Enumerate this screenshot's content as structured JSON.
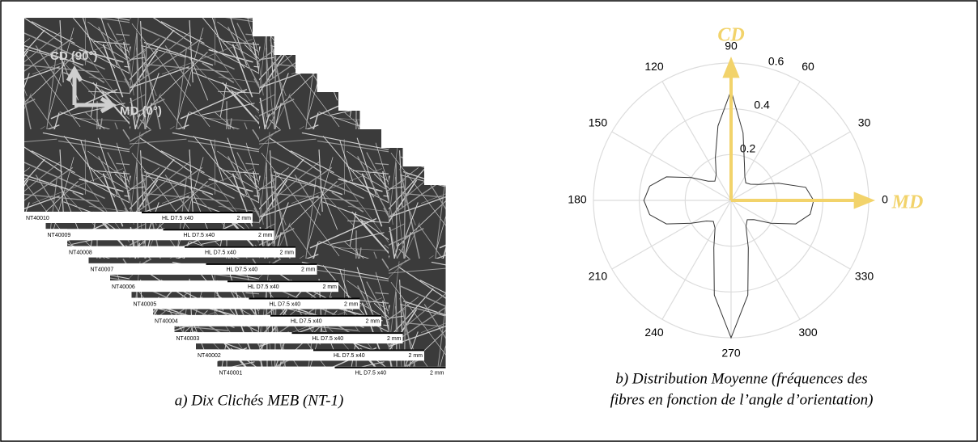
{
  "left_panel": {
    "caption": "a) Dix Clichés MEB (NT-1)",
    "overlay_axes": [
      "CD (90°)",
      "MD (0°)"
    ],
    "images": [
      {
        "id": "NT40010",
        "info": "HL   D7.5   x40",
        "scale": "2 mm"
      },
      {
        "id": "NT40009",
        "info": "HL   D7.5   x40",
        "scale": "2 mm"
      },
      {
        "id": "NT40008",
        "info": "HL   D7.5   x40",
        "scale": "2 mm"
      },
      {
        "id": "NT40007",
        "info": "HL   D7.5   x40",
        "scale": "2 mm"
      },
      {
        "id": "NT40006",
        "info": "HL   D7.5   x40",
        "scale": "2 mm"
      },
      {
        "id": "NT40005",
        "info": "HL   D7.5   x40",
        "scale": "2 mm"
      },
      {
        "id": "NT40004",
        "info": "HL   D7.5   x40",
        "scale": "2 mm"
      },
      {
        "id": "NT40003",
        "info": "HL   D7.5   x40",
        "scale": "2 mm"
      },
      {
        "id": "NT40002",
        "info": "HL   D7.5   x40",
        "scale": "2 mm"
      },
      {
        "id": "NT40001",
        "info": "HL   D7.5   x40",
        "scale": "2 mm"
      }
    ]
  },
  "chart_data": {
    "type": "polar",
    "caption_lines": [
      "b) Distribution Moyenne (fréquences des",
      "fibres en fonction de l’angle d’orientation)"
    ],
    "theta": [
      0,
      10,
      20,
      30,
      40,
      50,
      60,
      70,
      80,
      90,
      100,
      110,
      120,
      130,
      140,
      150,
      160,
      170,
      180,
      190,
      200,
      210,
      220,
      230,
      240,
      250,
      260,
      270,
      280,
      290,
      300,
      310,
      320,
      330,
      340,
      350
    ],
    "values": [
      0.36,
      0.33,
      0.22,
      0.14,
      0.11,
      0.1,
      0.12,
      0.17,
      0.3,
      0.48,
      0.33,
      0.2,
      0.13,
      0.11,
      0.13,
      0.2,
      0.3,
      0.36,
      0.38,
      0.36,
      0.3,
      0.2,
      0.14,
      0.12,
      0.14,
      0.22,
      0.42,
      0.6,
      0.42,
      0.22,
      0.13,
      0.11,
      0.13,
      0.2,
      0.3,
      0.35
    ],
    "color": "#333333",
    "rlim": [
      0,
      0.6
    ],
    "rticks": [
      0.2,
      0.4,
      0.6
    ],
    "thetaticks": [
      0,
      30,
      60,
      90,
      120,
      150,
      180,
      210,
      240,
      270,
      300,
      330
    ],
    "grid": true,
    "axis_arrows": [
      {
        "label": "MD",
        "angle": 0
      },
      {
        "label": "CD",
        "angle": 90
      }
    ],
    "arrow_color": "#f2d36b"
  }
}
